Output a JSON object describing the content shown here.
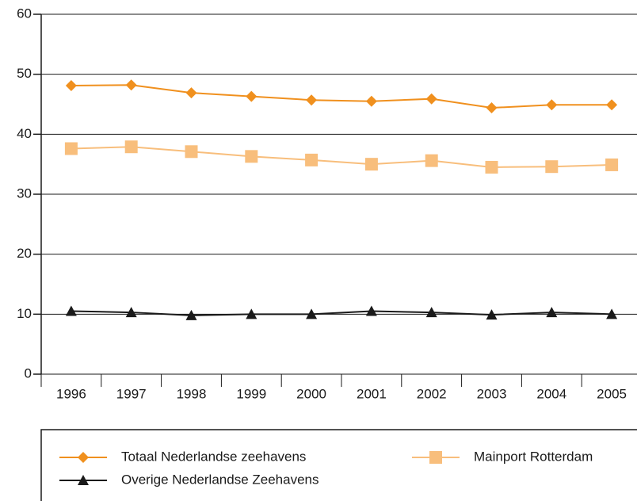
{
  "chart_data": {
    "type": "line",
    "categories": [
      "1996",
      "1997",
      "1998",
      "1999",
      "2000",
      "2001",
      "2002",
      "2003",
      "2004",
      "2005"
    ],
    "series": [
      {
        "name": "Totaal Nederlandse zeehavens",
        "color": "#f0901e",
        "marker": "diamond",
        "values": [
          48.1,
          48.2,
          46.9,
          46.3,
          45.7,
          45.5,
          45.9,
          44.4,
          44.9,
          44.9
        ]
      },
      {
        "name": "Mainport Rotterdam",
        "color": "#f8be7c",
        "marker": "square",
        "values": [
          37.6,
          37.9,
          37.1,
          36.3,
          35.7,
          35.0,
          35.6,
          34.5,
          34.6,
          34.9
        ]
      },
      {
        "name": "Overige Nederlandse Zeehavens",
        "color": "#1a1a1a",
        "marker": "triangle",
        "values": [
          10.5,
          10.3,
          9.8,
          10.0,
          10.0,
          10.5,
          10.3,
          9.9,
          10.3,
          10.0
        ]
      }
    ],
    "ylim": [
      0,
      60
    ],
    "yticks": [
      0,
      10,
      20,
      30,
      40,
      50,
      60
    ],
    "grid": true
  }
}
